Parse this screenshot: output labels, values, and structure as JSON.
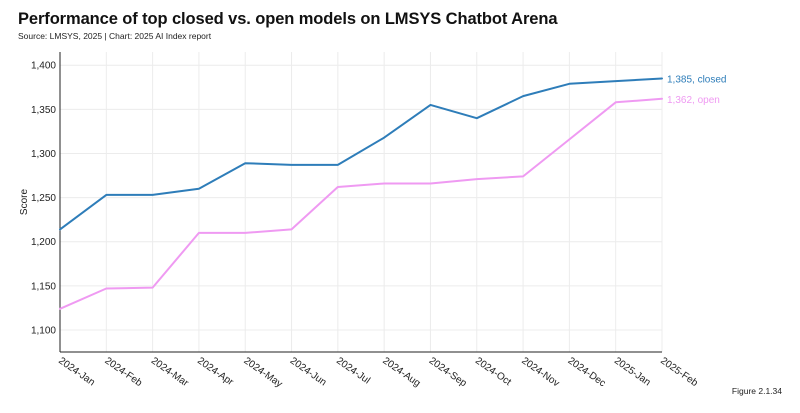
{
  "header": {
    "title": "Performance of top closed vs. open models on LMSYS Chatbot Arena",
    "source": "Source: LMSYS, 2025 | Chart: 2025 AI Index report"
  },
  "figure_label": "Figure 2.1.34",
  "chart_data": {
    "type": "line",
    "title": "Performance of top closed vs. open models on LMSYS Chatbot Arena",
    "xlabel": "",
    "ylabel": "Score",
    "categories": [
      "2024-Jan",
      "2024-Feb",
      "2024-Mar",
      "2024-Apr",
      "2024-May",
      "2024-Jun",
      "2024-Jul",
      "2024-Aug",
      "2024-Sep",
      "2024-Oct",
      "2024-Nov",
      "2024-Dec",
      "2025-Jan",
      "2025-Feb"
    ],
    "ylim": [
      1075,
      1415
    ],
    "yticks": [
      1100,
      1150,
      1200,
      1250,
      1300,
      1350,
      1400
    ],
    "ytick_labels": [
      "1,100",
      "1,150",
      "1,200",
      "1,250",
      "1,300",
      "1,350",
      "1,400"
    ],
    "grid": true,
    "series": [
      {
        "name": "closed",
        "color": "#2e7db9",
        "values": [
          1214,
          1253,
          1253,
          1260,
          1289,
          1287,
          1287,
          1318,
          1355,
          1340,
          1365,
          1379,
          1382,
          1385
        ],
        "end_label": "1,385, closed"
      },
      {
        "name": "open",
        "color": "#ef9af2",
        "values": [
          1124,
          1147,
          1148,
          1210,
          1210,
          1214,
          1262,
          1266,
          1266,
          1271,
          1274,
          1316,
          1358,
          1362
        ],
        "end_label": "1,362, open"
      }
    ]
  }
}
